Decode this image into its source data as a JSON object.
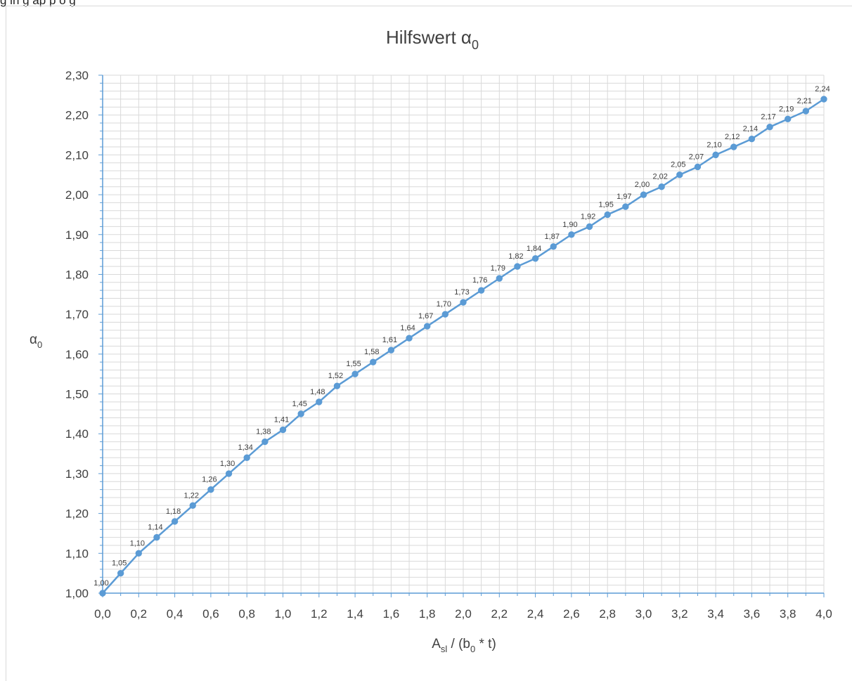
{
  "top_fragment": "g in g ap p   o g",
  "chart_data": {
    "type": "line",
    "title": "Hilfswert α",
    "title_subscript": "0",
    "xlabel": "A",
    "xlabel_sub1": "sl",
    "xlabel_mid": " / (b",
    "xlabel_sub2": "0",
    "xlabel_end": " * t)",
    "ylabel": "α",
    "ylabel_subscript": "0",
    "xlim": [
      0,
      4
    ],
    "ylim": [
      1,
      2.3
    ],
    "x_major_step": 0.2,
    "x_minor_step": 0.1,
    "y_major_step": 0.1,
    "y_minor_step": 0.02,
    "grid": true,
    "x_tick_labels": [
      "0,0",
      "0,2",
      "0,4",
      "0,6",
      "0,8",
      "1,0",
      "1,2",
      "1,4",
      "1,6",
      "1,8",
      "2,0",
      "2,2",
      "2,4",
      "2,6",
      "2,8",
      "3,0",
      "3,2",
      "3,4",
      "3,6",
      "3,8",
      "4,0"
    ],
    "y_tick_labels": [
      "1,00",
      "1,10",
      "1,20",
      "1,30",
      "1,40",
      "1,50",
      "1,60",
      "1,70",
      "1,80",
      "1,90",
      "2,00",
      "2,10",
      "2,20",
      "2,30"
    ],
    "series": [
      {
        "color": "#5b9bd5",
        "x": [
          0.0,
          0.1,
          0.2,
          0.3,
          0.4,
          0.5,
          0.6,
          0.7,
          0.8,
          0.9,
          1.0,
          1.1,
          1.2,
          1.3,
          1.4,
          1.5,
          1.6,
          1.7,
          1.8,
          1.9,
          2.0,
          2.1,
          2.2,
          2.3,
          2.4,
          2.5,
          2.6,
          2.7,
          2.8,
          2.9,
          3.0,
          3.1,
          3.2,
          3.3,
          3.4,
          3.5,
          3.6,
          3.7,
          3.8,
          3.9,
          4.0
        ],
        "y": [
          1.0,
          1.05,
          1.1,
          1.14,
          1.18,
          1.22,
          1.26,
          1.3,
          1.34,
          1.38,
          1.41,
          1.45,
          1.48,
          1.52,
          1.55,
          1.58,
          1.61,
          1.64,
          1.67,
          1.7,
          1.73,
          1.76,
          1.79,
          1.82,
          1.84,
          1.87,
          1.9,
          1.92,
          1.95,
          1.97,
          2.0,
          2.02,
          2.05,
          2.07,
          2.1,
          2.12,
          2.14,
          2.17,
          2.19,
          2.21,
          2.24
        ],
        "labels": [
          "1,00",
          "1,05",
          "1,10",
          "1,14",
          "1,18",
          "1,22",
          "1,26",
          "1,30",
          "1,34",
          "1,38",
          "1,41",
          "1,45",
          "1,48",
          "1,52",
          "1,55",
          "1,58",
          "1,61",
          "1,64",
          "1,67",
          "1,70",
          "1,73",
          "1,76",
          "1,79",
          "1,82",
          "1,84",
          "1,87",
          "1,90",
          "1,92",
          "1,95",
          "1,97",
          "2,00",
          "2,02",
          "2,05",
          "2,07",
          "2,10",
          "2,12",
          "2,14",
          "2,17",
          "2,19",
          "2,21",
          "2,24"
        ]
      }
    ]
  },
  "colors": {
    "line": "#5b9bd5",
    "grid": "#d9d9d9",
    "axis": "#5b9bd5",
    "text": "#404040"
  }
}
